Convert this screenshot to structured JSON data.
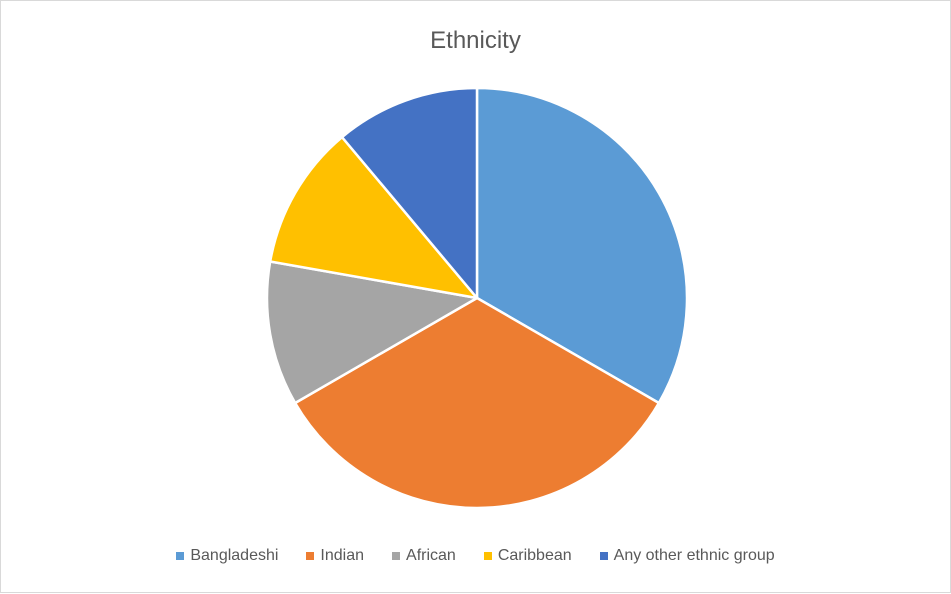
{
  "chart_data": {
    "type": "pie",
    "title": "Ethnicity",
    "legend_position": "bottom",
    "slices": [
      {
        "label": "Bangladeshi",
        "value": 3,
        "color": "#5b9bd5"
      },
      {
        "label": "Indian",
        "value": 3,
        "color": "#ed7d31"
      },
      {
        "label": "African",
        "value": 1,
        "color": "#a5a5a5"
      },
      {
        "label": "Caribbean",
        "value": 1,
        "color": "#ffc000"
      },
      {
        "label": "Any other ethnic group",
        "value": 1,
        "color": "#4472c4"
      }
    ]
  }
}
